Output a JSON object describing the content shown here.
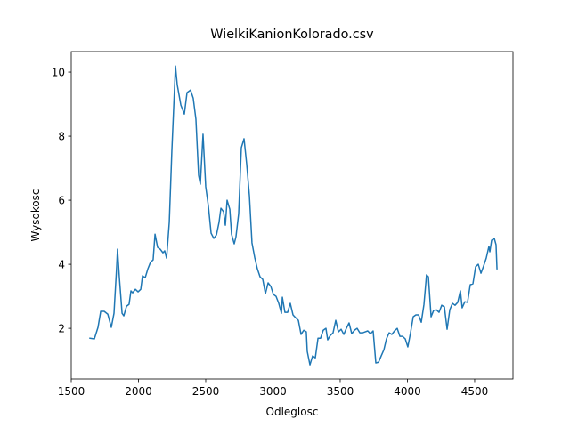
{
  "chart_data": {
    "type": "line",
    "title": "WielkiKanionKolorado.csv",
    "x_label": "Odleglosc",
    "y_label": "Wysokosc",
    "color": "#1f77b4",
    "x": [
      1639,
      1672,
      1699,
      1719,
      1745,
      1772,
      1798,
      1818,
      1838,
      1844,
      1858,
      1878,
      1891,
      1911,
      1930,
      1944,
      1957,
      1977,
      1997,
      2017,
      2030,
      2050,
      2070,
      2089,
      2109,
      2123,
      2142,
      2162,
      2182,
      2195,
      2209,
      2229,
      2248,
      2275,
      2288,
      2315,
      2341,
      2361,
      2387,
      2407,
      2427,
      2447,
      2460,
      2480,
      2500,
      2520,
      2540,
      2560,
      2580,
      2599,
      2613,
      2633,
      2646,
      2659,
      2679,
      2692,
      2712,
      2725,
      2745,
      2765,
      2785,
      2805,
      2825,
      2844,
      2864,
      2884,
      2904,
      2924,
      2944,
      2964,
      2984,
      3003,
      3023,
      3043,
      3063,
      3070,
      3089,
      3109,
      3129,
      3149,
      3169,
      3189,
      3209,
      3229,
      3248,
      3255,
      3275,
      3295,
      3315,
      3335,
      3354,
      3374,
      3394,
      3407,
      3427,
      3447,
      3467,
      3487,
      3507,
      3527,
      3546,
      3566,
      3586,
      3606,
      3626,
      3646,
      3666,
      3686,
      3705,
      3725,
      3745,
      3765,
      3785,
      3805,
      3825,
      3844,
      3864,
      3884,
      3904,
      3924,
      3944,
      3964,
      3984,
      4003,
      4023,
      4043,
      4063,
      4083,
      4103,
      4123,
      4142,
      4156,
      4176,
      4195,
      4215,
      4235,
      4255,
      4275,
      4295,
      4315,
      4335,
      4354,
      4374,
      4394,
      4407,
      4427,
      4447,
      4467,
      4487,
      4507,
      4527,
      4547,
      4566,
      4586,
      4606,
      4613,
      4626,
      4646,
      4659,
      4666
    ],
    "values": [
      1.69,
      1.67,
      2.03,
      2.53,
      2.53,
      2.44,
      2.03,
      2.47,
      3.94,
      4.47,
      3.58,
      2.47,
      2.39,
      2.69,
      2.75,
      3.17,
      3.11,
      3.22,
      3.14,
      3.22,
      3.64,
      3.58,
      3.86,
      4.06,
      4.14,
      4.94,
      4.53,
      4.47,
      4.36,
      4.42,
      4.19,
      5.31,
      7.53,
      10.19,
      9.61,
      8.97,
      8.69,
      9.36,
      9.44,
      9.19,
      8.53,
      6.78,
      6.5,
      8.06,
      6.42,
      5.81,
      4.97,
      4.81,
      4.92,
      5.31,
      5.75,
      5.64,
      5.22,
      6.0,
      5.72,
      4.94,
      4.64,
      4.86,
      5.58,
      7.64,
      7.92,
      7.11,
      6.14,
      4.67,
      4.22,
      3.86,
      3.61,
      3.53,
      3.08,
      3.42,
      3.31,
      3.06,
      3.0,
      2.78,
      2.47,
      2.97,
      2.5,
      2.5,
      2.78,
      2.42,
      2.33,
      2.25,
      1.81,
      1.94,
      1.89,
      1.28,
      0.86,
      1.14,
      1.08,
      1.69,
      1.69,
      1.94,
      2.0,
      1.64,
      1.78,
      1.86,
      2.25,
      1.89,
      1.97,
      1.81,
      2.0,
      2.17,
      1.83,
      1.94,
      2.0,
      1.86,
      1.86,
      1.89,
      1.92,
      1.83,
      1.92,
      0.92,
      0.94,
      1.14,
      1.33,
      1.67,
      1.86,
      1.81,
      1.92,
      2.0,
      1.75,
      1.75,
      1.67,
      1.42,
      1.86,
      2.36,
      2.42,
      2.42,
      2.19,
      2.75,
      3.67,
      3.61,
      2.36,
      2.56,
      2.58,
      2.5,
      2.72,
      2.67,
      1.97,
      2.58,
      2.78,
      2.72,
      2.81,
      3.17,
      2.64,
      2.83,
      2.81,
      3.36,
      3.39,
      3.92,
      4.0,
      3.72,
      3.94,
      4.19,
      4.56,
      4.39,
      4.75,
      4.81,
      4.61,
      3.86
    ],
    "xlim": [
      1500,
      4785
    ],
    "ylim": [
      0.42,
      10.64
    ],
    "xticks": [
      1500,
      2000,
      2500,
      3000,
      3500,
      4000,
      4500
    ],
    "yticks": [
      2,
      4,
      6,
      8,
      10
    ]
  }
}
